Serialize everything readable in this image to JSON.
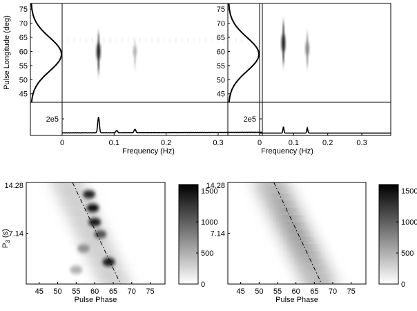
{
  "chart_data": [
    {
      "type": "heatmap",
      "panel": "top-left",
      "ylabel": "Pulse Longitude (deg)",
      "xlabel": "Frequency (Hz)",
      "y_ticks": [
        "45",
        "50",
        "55",
        "60",
        "65",
        "70",
        "75"
      ],
      "ylim": [
        42,
        77
      ],
      "x_ticks": [
        "0",
        "0.1",
        "0.2",
        "0.3"
      ],
      "xlim": [
        0,
        0.385
      ],
      "spectrum_tick": "2e5",
      "profile": {
        "peak_longitude": 59,
        "width_deg": 6
      },
      "features": [
        {
          "frequency": 0.07,
          "longitude_center": 60,
          "extent": [
            53,
            66
          ],
          "strength": 1.0
        },
        {
          "frequency": 0.14,
          "longitude_center": 60,
          "extent": [
            55,
            63
          ],
          "strength": 0.35
        },
        {
          "frequency_band": [
            0,
            0.38
          ],
          "longitude": 64,
          "strength": 0.25,
          "note_free": true
        }
      ],
      "spectrum": [
        {
          "frequency": 0.07,
          "value": 0.55
        },
        {
          "frequency": 0.14,
          "value": 0.12
        },
        {
          "frequency": 0.105,
          "value": 0.08
        }
      ]
    },
    {
      "type": "heatmap",
      "panel": "top-right",
      "y_ticks": [
        "45",
        "50",
        "55",
        "60",
        "65",
        "70",
        "75"
      ],
      "ylim": [
        42,
        77
      ],
      "xlabel": "Frequency (Hz)",
      "x_ticks": [
        "0",
        "0.1",
        "0.2",
        "0.3"
      ],
      "xlim": [
        0,
        0.385
      ],
      "spectrum_tick": "2e5",
      "profile": {
        "peak_longitude": 59,
        "width_deg": 6
      },
      "features": [
        {
          "frequency": 0.07,
          "longitude_center": 63,
          "extent": [
            56,
            70
          ],
          "strength": 1.0
        },
        {
          "frequency": 0.14,
          "longitude_center": 61,
          "extent": [
            55,
            66
          ],
          "strength": 0.55
        }
      ],
      "spectrum": [
        {
          "frequency": 0.07,
          "value": 0.22
        },
        {
          "frequency": 0.14,
          "value": 0.18
        }
      ]
    },
    {
      "type": "heatmap",
      "panel": "bottom-left",
      "xlabel": "Pulse Phase",
      "ylabel": "P3 (s)",
      "x_ticks": [
        "45",
        "50",
        "55",
        "60",
        "65",
        "70",
        "75"
      ],
      "xlim": [
        41.5,
        79
      ],
      "y_ticks": [
        "7.14",
        "14.28"
      ],
      "ylim": [
        0,
        14.28
      ],
      "colorbar": {
        "ticks": [
          "0",
          "500",
          "1000",
          "1500"
        ],
        "range": [
          0,
          1600
        ]
      },
      "drift_line": {
        "start": [
          54,
          14.28
        ],
        "end": [
          67,
          0
        ]
      },
      "peaks": [
        {
          "phase": 58.5,
          "p3": 12.6,
          "value": 1400
        },
        {
          "phase": 59.5,
          "p3": 10.7,
          "value": 1500
        },
        {
          "phase": 60.0,
          "p3": 8.7,
          "value": 1450
        },
        {
          "phase": 61.5,
          "p3": 7.0,
          "value": 1100
        },
        {
          "phase": 63.8,
          "p3": 3.1,
          "value": 1450
        },
        {
          "phase": 57.0,
          "p3": 5.0,
          "value": 700
        },
        {
          "phase": 55.0,
          "p3": 2.0,
          "value": 500
        }
      ]
    },
    {
      "type": "heatmap",
      "panel": "bottom-right",
      "xlabel": "Pulse Phase",
      "x_ticks": [
        "45",
        "50",
        "55",
        "60",
        "65",
        "70",
        "75"
      ],
      "xlim": [
        41.5,
        79
      ],
      "y_ticks": [
        "7.14",
        "14.28"
      ],
      "ylim": [
        0,
        14.28
      ],
      "colorbar": {
        "ticks": [
          "0",
          "500",
          "1000",
          "1500"
        ],
        "range": [
          0,
          1600
        ]
      },
      "drift_line": {
        "start": [
          54,
          14.28
        ],
        "end": [
          67,
          0
        ]
      },
      "band": {
        "start": [
          53,
          14.28
        ],
        "end": [
          66.5,
          0
        ],
        "width_phase": 5,
        "peak_value": 1100
      }
    }
  ],
  "labels": {
    "ylabel_top": "Pulse Longitude (deg)",
    "xlabel_freq_left": "Frequency (Hz)",
    "xlabel_freq_right": "Frequency (Hz)",
    "xlabel_phase_left": "Pulse Phase",
    "xlabel_phase_right": "Pulse Phase",
    "p3_label_main": "P",
    "p3_label_sub": "3",
    "p3_label_unit": " (s)"
  }
}
